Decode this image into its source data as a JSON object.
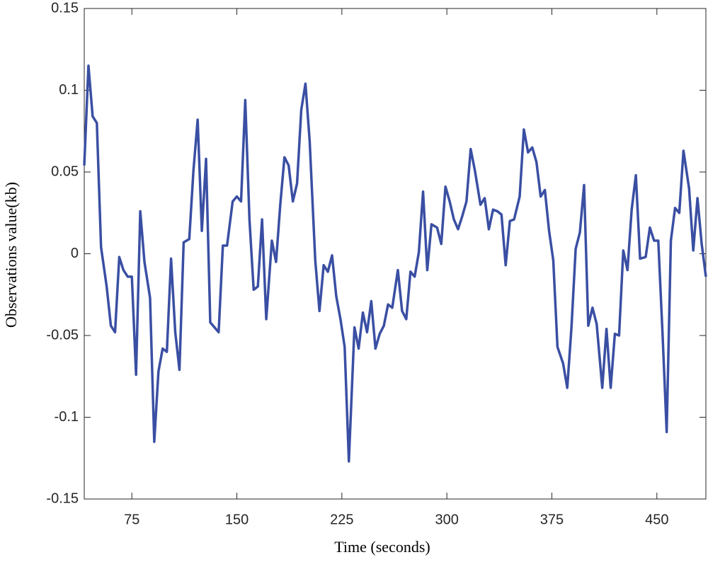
{
  "chart_data": {
    "type": "line",
    "xlabel": "Time (seconds)",
    "ylabel": "Observations value(kb)",
    "xlim": [
      41,
      485
    ],
    "ylim": [
      -0.15,
      0.15
    ],
    "xticks": [
      75,
      150,
      225,
      300,
      375,
      450
    ],
    "yticks": [
      -0.15,
      -0.1,
      -0.05,
      0,
      0.05,
      0.1,
      0.15
    ],
    "x": [
      41,
      44,
      47,
      50,
      53,
      57,
      60,
      63,
      66,
      69,
      72,
      75,
      78,
      81,
      84,
      88,
      91,
      94,
      97,
      100,
      103,
      106,
      109,
      112,
      116,
      119,
      122,
      125,
      128,
      131,
      134,
      137,
      140,
      143,
      147,
      150,
      153,
      156,
      159,
      162,
      165,
      168,
      171,
      175,
      178,
      181,
      184,
      187,
      190,
      193,
      196,
      199,
      202,
      206,
      209,
      212,
      215,
      218,
      221,
      224,
      227,
      230,
      234,
      237,
      240,
      243,
      246,
      249,
      252,
      255,
      258,
      261,
      265,
      268,
      271,
      274,
      277,
      280,
      283,
      286,
      289,
      293,
      296,
      299,
      302,
      305,
      308,
      311,
      314,
      317,
      320,
      324,
      327,
      330,
      333,
      336,
      339,
      342,
      345,
      348,
      352,
      355,
      358,
      361,
      364,
      367,
      370,
      373,
      376,
      379,
      383,
      386,
      389,
      392,
      395,
      398,
      401,
      404,
      407,
      411,
      414,
      417,
      420,
      423,
      426,
      429,
      432,
      435,
      438,
      442,
      445,
      448,
      451,
      454,
      457,
      460,
      463,
      466,
      469,
      473,
      476,
      479,
      482,
      485
    ],
    "series": [
      {
        "color": "#3a4fa3",
        "values": [
          0.054,
          0.115,
          0.084,
          0.08,
          0.004,
          -0.02,
          -0.044,
          -0.048,
          -0.002,
          -0.01,
          -0.014,
          -0.014,
          -0.074,
          0.026,
          -0.005,
          -0.027,
          -0.115,
          -0.072,
          -0.058,
          -0.06,
          -0.003,
          -0.048,
          -0.071,
          0.007,
          0.009,
          0.051,
          0.082,
          0.014,
          0.058,
          -0.042,
          -0.045,
          -0.048,
          0.005,
          0.005,
          0.032,
          0.035,
          0.032,
          0.094,
          0.021,
          -0.022,
          -0.02,
          0.021,
          -0.04,
          0.008,
          -0.005,
          0.03,
          0.059,
          0.054,
          0.032,
          0.043,
          0.088,
          0.104,
          0.069,
          -0.004,
          -0.035,
          -0.007,
          -0.011,
          -0.001,
          -0.026,
          -0.04,
          -0.057,
          -0.127,
          -0.045,
          -0.058,
          -0.036,
          -0.048,
          -0.029,
          -0.058,
          -0.049,
          -0.044,
          -0.031,
          -0.033,
          -0.01,
          -0.035,
          -0.04,
          -0.011,
          -0.014,
          0.001,
          0.038,
          -0.01,
          0.018,
          0.016,
          0.006,
          0.041,
          0.032,
          0.021,
          0.015,
          0.023,
          0.032,
          0.064,
          0.051,
          0.03,
          0.034,
          0.015,
          0.027,
          0.026,
          0.024,
          -0.007,
          0.02,
          0.021,
          0.035,
          0.076,
          0.062,
          0.065,
          0.056,
          0.035,
          0.039,
          0.014,
          -0.004,
          -0.057,
          -0.067,
          -0.082,
          -0.045,
          0.003,
          0.013,
          0.042,
          -0.044,
          -0.033,
          -0.043,
          -0.082,
          -0.046,
          -0.082,
          -0.049,
          -0.05,
          0.002,
          -0.01,
          0.027,
          0.048,
          -0.003,
          -0.002,
          0.016,
          0.008,
          0.008,
          -0.048,
          -0.109,
          0.008,
          0.028,
          0.025,
          0.063,
          0.04,
          0.002,
          0.034,
          0.006,
          -0.014
        ]
      }
    ]
  }
}
